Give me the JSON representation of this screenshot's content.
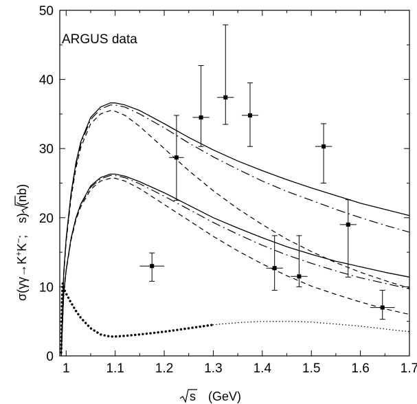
{
  "chart_data": {
    "type": "line",
    "annotation": "ARGUS data",
    "xlabel": {
      "sqrt": "s",
      "unit": "(GeV)"
    },
    "ylabel": {
      "prefix": "σ(γγ→K",
      "sup1": "+",
      "mid1": "K",
      "sup2": "−",
      "mid2": "; ",
      "sqrt": "s",
      "suffix": ")",
      "unit": "(nb)"
    },
    "xlim": [
      0.987,
      1.7
    ],
    "ylim": [
      0,
      50
    ],
    "xticks": [
      1.0,
      1.1,
      1.2,
      1.3,
      1.4,
      1.5,
      1.6,
      1.7
    ],
    "xtick_labels": [
      "1",
      "1.1",
      "1.2",
      "1.3",
      "1.4",
      "1.5",
      "1.6",
      "1.7"
    ],
    "yticks": [
      0,
      10,
      20,
      30,
      40,
      50
    ],
    "ytick_labels": [
      "0",
      "10",
      "20",
      "30",
      "40",
      "50"
    ],
    "points": [
      {
        "x": 1.175,
        "y": 13.0,
        "xerr": 0.025,
        "ylo": 10.8,
        "yhi": 14.9
      },
      {
        "x": 1.225,
        "y": 28.7,
        "xerr": 0.015,
        "ylo": 22.5,
        "yhi": 34.8
      },
      {
        "x": 1.275,
        "y": 34.5,
        "xerr": 0.017,
        "ylo": 30.3,
        "yhi": 42.0
      },
      {
        "x": 1.325,
        "y": 37.4,
        "xerr": 0.017,
        "ylo": 33.5,
        "yhi": 47.9
      },
      {
        "x": 1.375,
        "y": 34.8,
        "xerr": 0.017,
        "ylo": 30.3,
        "yhi": 39.5
      },
      {
        "x": 1.425,
        "y": 12.7,
        "xerr": 0.017,
        "ylo": 9.5,
        "yhi": 17.4
      },
      {
        "x": 1.475,
        "y": 11.5,
        "xerr": 0.017,
        "ylo": 10.0,
        "yhi": 17.4
      },
      {
        "x": 1.525,
        "y": 30.3,
        "xerr": 0.017,
        "ylo": 25.0,
        "yhi": 33.6
      },
      {
        "x": 1.575,
        "y": 19.0,
        "xerr": 0.017,
        "ylo": 11.4,
        "yhi": 22.6
      },
      {
        "x": 1.645,
        "y": 7.0,
        "xerr": 0.025,
        "ylo": 5.3,
        "yhi": 9.5
      }
    ],
    "series": [
      {
        "style": "solid",
        "x": [
          0.99,
          0.995,
          1.0,
          1.01,
          1.02,
          1.03,
          1.05,
          1.07,
          1.09,
          1.1,
          1.12,
          1.15,
          1.2,
          1.25,
          1.3,
          1.35,
          1.4,
          1.45,
          1.5,
          1.55,
          1.6,
          1.65,
          1.7
        ],
        "y": [
          0,
          12.0,
          17.0,
          23.5,
          28.0,
          31.0,
          34.5,
          36.0,
          36.6,
          36.6,
          36.3,
          35.5,
          33.6,
          31.6,
          29.8,
          28.2,
          26.8,
          25.5,
          24.3,
          23.2,
          22.1,
          21.2,
          20.3
        ]
      },
      {
        "style": "dashdot",
        "x": [
          0.99,
          0.995,
          1.0,
          1.01,
          1.02,
          1.03,
          1.05,
          1.07,
          1.09,
          1.1,
          1.12,
          1.15,
          1.2,
          1.25,
          1.3,
          1.35,
          1.4,
          1.45,
          1.5,
          1.55,
          1.6,
          1.65,
          1.7
        ],
        "y": [
          0,
          11.8,
          16.8,
          23.2,
          27.7,
          30.7,
          34.2,
          35.7,
          36.3,
          36.3,
          36.0,
          35.0,
          33.0,
          30.8,
          28.8,
          27.0,
          25.3,
          23.8,
          22.5,
          21.2,
          20.0,
          18.9,
          17.9
        ]
      },
      {
        "style": "dashed",
        "x": [
          0.99,
          0.995,
          1.0,
          1.01,
          1.02,
          1.03,
          1.05,
          1.07,
          1.09,
          1.1,
          1.12,
          1.15,
          1.2,
          1.25,
          1.3,
          1.35,
          1.4,
          1.45,
          1.5,
          1.55,
          1.6,
          1.65,
          1.7
        ],
        "y": [
          0,
          11.5,
          16.5,
          22.8,
          27.2,
          30.2,
          33.6,
          35.0,
          35.5,
          35.4,
          34.8,
          33.2,
          30.0,
          26.8,
          23.9,
          21.3,
          19.0,
          16.9,
          15.1,
          13.5,
          12.1,
          10.9,
          9.8
        ]
      },
      {
        "style": "solid",
        "x": [
          0.99,
          0.995,
          1.0,
          1.01,
          1.02,
          1.03,
          1.05,
          1.07,
          1.09,
          1.1,
          1.12,
          1.15,
          1.2,
          1.25,
          1.3,
          1.35,
          1.4,
          1.45,
          1.5,
          1.55,
          1.6,
          1.65,
          1.7
        ],
        "y": [
          0,
          9.0,
          12.5,
          17.0,
          20.0,
          22.0,
          24.6,
          25.8,
          26.3,
          26.3,
          26.0,
          25.2,
          23.6,
          21.8,
          20.0,
          18.5,
          17.1,
          15.8,
          14.7,
          13.7,
          12.9,
          12.1,
          11.4
        ]
      },
      {
        "style": "dashdot",
        "x": [
          0.99,
          0.995,
          1.0,
          1.01,
          1.02,
          1.03,
          1.05,
          1.07,
          1.09,
          1.1,
          1.12,
          1.15,
          1.2,
          1.25,
          1.3,
          1.35,
          1.4,
          1.45,
          1.5,
          1.55,
          1.6,
          1.65,
          1.7
        ],
        "y": [
          0,
          8.9,
          12.4,
          16.9,
          19.9,
          21.9,
          24.4,
          25.6,
          26.1,
          26.1,
          25.8,
          24.9,
          23.1,
          21.2,
          19.3,
          17.6,
          16.0,
          14.6,
          13.4,
          12.3,
          11.3,
          10.5,
          9.7
        ]
      },
      {
        "style": "dashed",
        "x": [
          0.99,
          0.995,
          1.0,
          1.01,
          1.02,
          1.03,
          1.05,
          1.07,
          1.09,
          1.1,
          1.12,
          1.15,
          1.2,
          1.25,
          1.3,
          1.35,
          1.4,
          1.45,
          1.5,
          1.55,
          1.6,
          1.65,
          1.7
        ],
        "y": [
          0,
          8.8,
          12.3,
          16.7,
          19.7,
          21.6,
          24.1,
          25.3,
          25.7,
          25.7,
          25.3,
          24.2,
          21.9,
          19.6,
          17.3,
          15.2,
          13.3,
          11.6,
          10.1,
          8.9,
          7.8,
          6.8,
          6.0
        ]
      },
      {
        "style": "dotted-heavy",
        "x": [
          0.99,
          0.9915,
          0.993,
          0.995,
          1.0,
          1.01,
          1.02,
          1.03,
          1.05,
          1.07,
          1.09,
          1.1,
          1.12,
          1.15,
          1.2,
          1.25,
          1.28,
          1.3
        ],
        "y": [
          0.5,
          8.0,
          10.5,
          9.8,
          9.0,
          7.7,
          6.5,
          5.5,
          4.0,
          3.1,
          2.8,
          2.8,
          2.9,
          3.1,
          3.5,
          4.0,
          4.3,
          4.5
        ]
      },
      {
        "style": "dotted",
        "x": [
          1.3,
          1.35,
          1.4,
          1.45,
          1.5,
          1.55,
          1.6,
          1.65,
          1.7
        ],
        "y": [
          4.5,
          4.8,
          5.0,
          5.0,
          4.9,
          4.6,
          4.3,
          3.9,
          3.5
        ]
      }
    ]
  }
}
